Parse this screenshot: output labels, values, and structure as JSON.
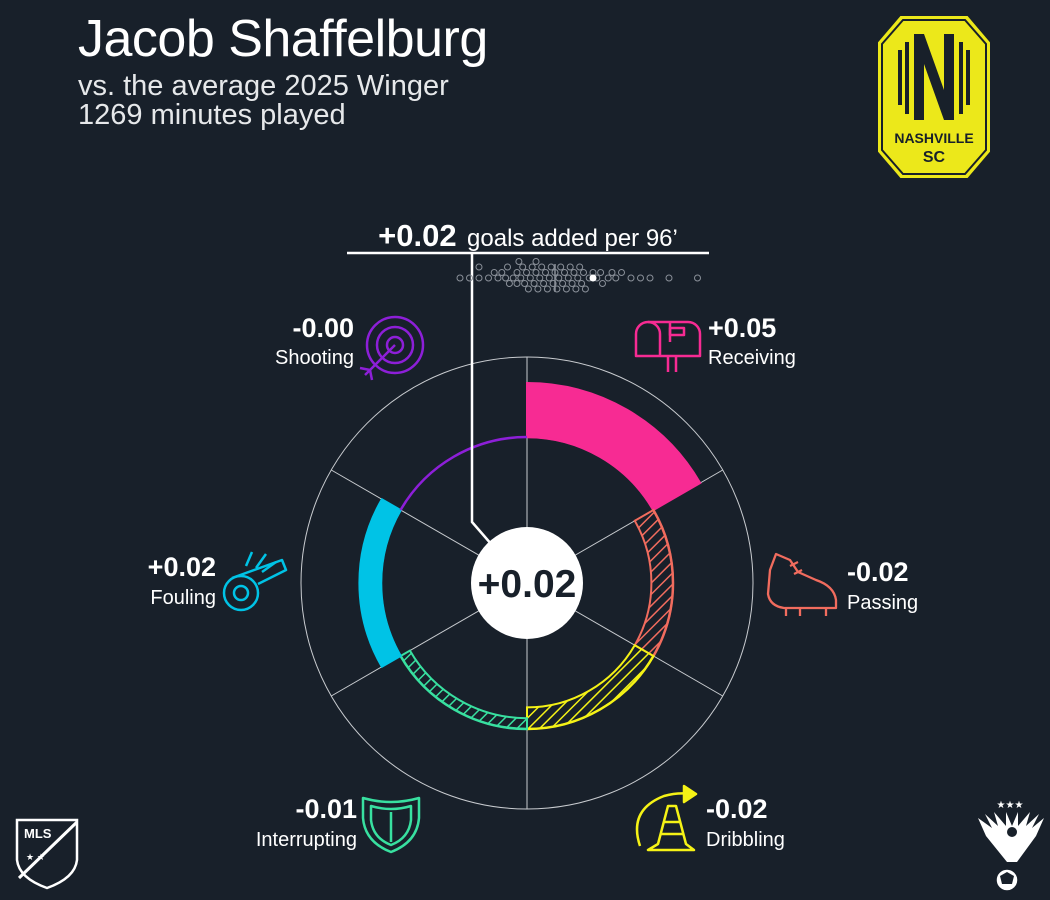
{
  "header": {
    "player_name": "Jacob Shaffelburg",
    "comparison": "vs. the average 2025 Winger",
    "minutes": "1269 minutes played"
  },
  "team_badge": {
    "icon": "nashville-sc-crest-icon",
    "text_top": "NASHVILLE",
    "text_bottom": "SC",
    "color": "#ece81a"
  },
  "total": {
    "value": "+0.02",
    "unit_label": "goals added per 96’"
  },
  "chart_data": {
    "type": "radial-bar",
    "center_value": "+0.02",
    "rlim": [
      -0.05,
      0.06
    ],
    "baseline": 0,
    "categories": [
      {
        "key": "receiving",
        "label": "Receiving",
        "value_text": "+0.05",
        "value": 0.05,
        "color": "#f72b93",
        "icon": "mailbox-icon"
      },
      {
        "key": "passing",
        "label": "Passing",
        "value_text": "-0.02",
        "value": -0.02,
        "color": "#f16c5e",
        "icon": "cleat-icon"
      },
      {
        "key": "dribbling",
        "label": "Dribbling",
        "value_text": "-0.02",
        "value": -0.02,
        "color": "#f5f216",
        "icon": "cone-icon"
      },
      {
        "key": "interrupting",
        "label": "Interrupting",
        "value_text": "-0.01",
        "value": -0.01,
        "color": "#38e0a0",
        "icon": "shield-icon"
      },
      {
        "key": "fouling",
        "label": "Fouling",
        "value_text": "+0.02",
        "value": 0.02,
        "color": "#00c3e6",
        "icon": "whistle-icon"
      },
      {
        "key": "shooting",
        "label": "Shooting",
        "value_text": "-0.00",
        "value": 0.0,
        "color": "#8d1fd8",
        "icon": "target-icon"
      }
    ],
    "distribution": {
      "player_value": 0.02,
      "median": 0.0,
      "others": [
        -0.05,
        -0.045,
        -0.04,
        -0.04,
        -0.035,
        -0.032,
        -0.03,
        -0.028,
        -0.026,
        -0.025,
        -0.024,
        -0.022,
        -0.02,
        -0.02,
        -0.019,
        -0.018,
        -0.017,
        -0.016,
        -0.015,
        -0.014,
        -0.013,
        -0.012,
        -0.011,
        -0.01,
        -0.01,
        -0.009,
        -0.008,
        -0.007,
        -0.006,
        -0.005,
        -0.004,
        -0.003,
        -0.002,
        -0.001,
        0.0,
        0.001,
        0.002,
        0.003,
        0.004,
        0.005,
        0.006,
        0.007,
        0.008,
        0.009,
        0.01,
        0.011,
        0.012,
        0.013,
        0.014,
        0.015,
        0.016,
        0.018,
        0.02,
        0.022,
        0.024,
        0.025,
        0.028,
        0.03,
        0.032,
        0.035,
        0.04,
        0.045,
        0.05,
        0.06,
        0.075
      ]
    }
  },
  "footer": {
    "left_logo": "mls-logo-icon",
    "left_logo_text": "MLS",
    "right_logo": "eagle-crest-icon"
  }
}
